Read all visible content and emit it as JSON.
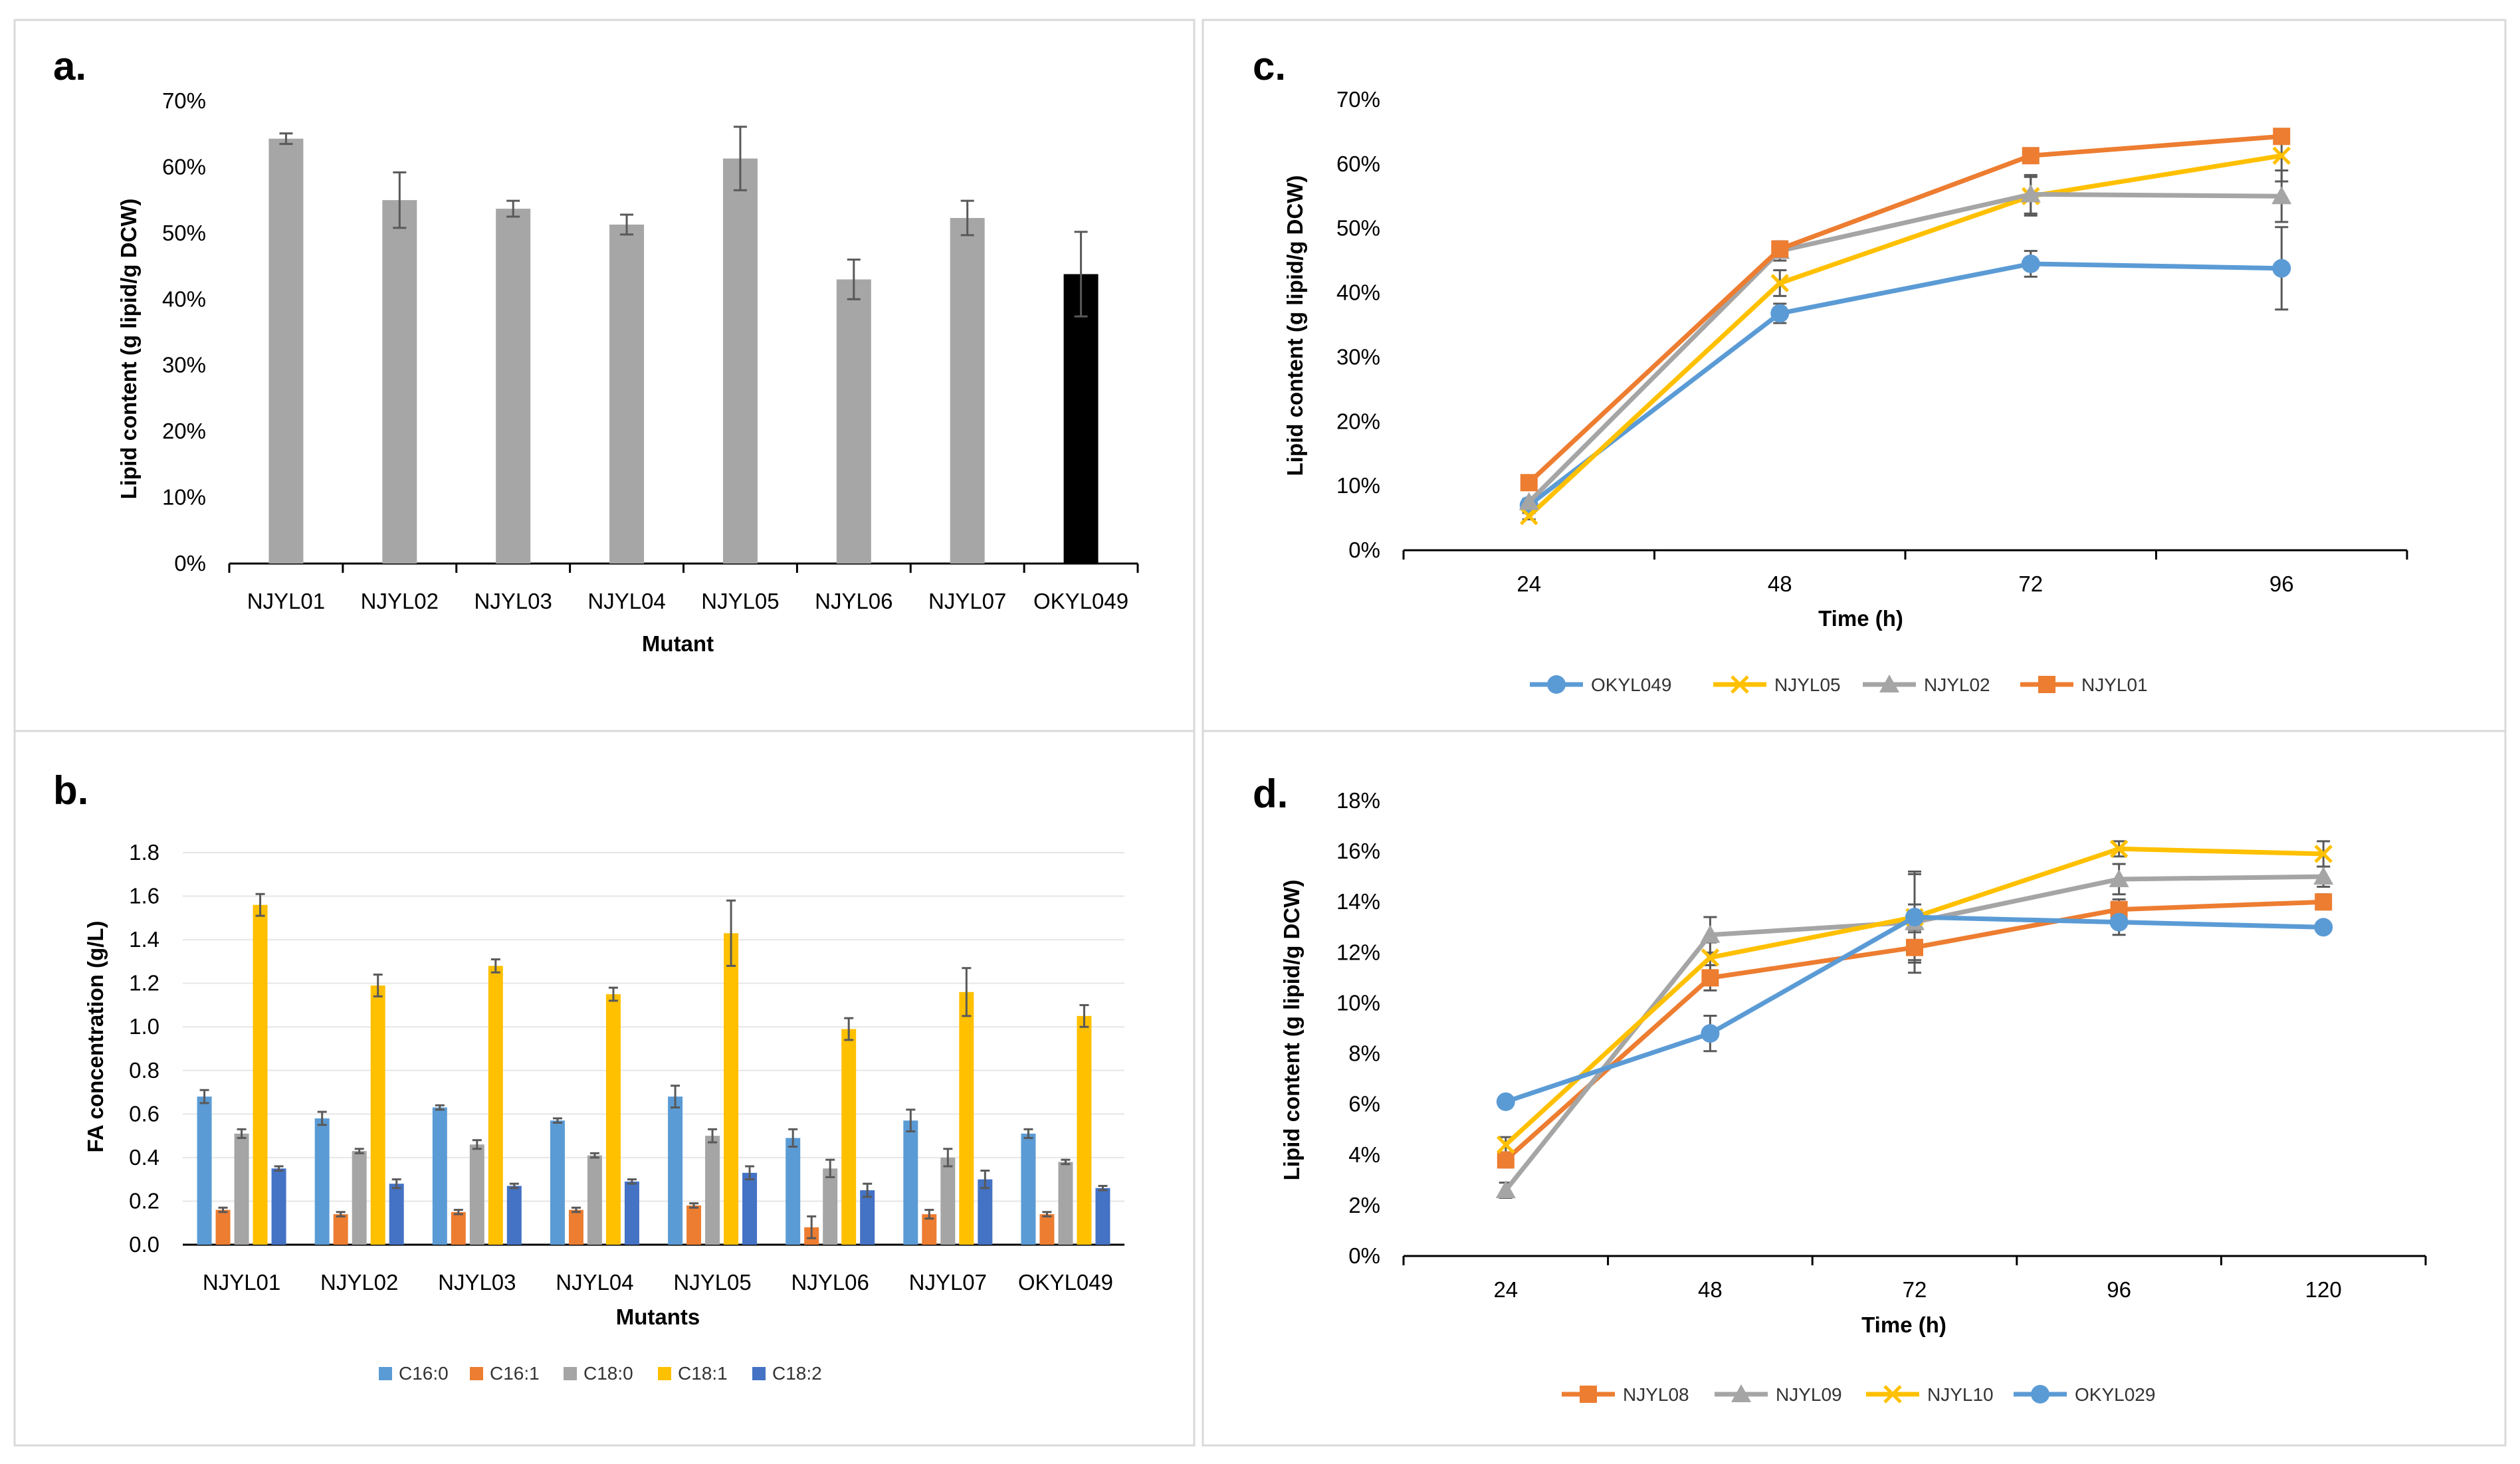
{
  "colors": {
    "gray_bar": "#a6a6a6",
    "black_bar": "#000000",
    "blue": "#5b9bd5",
    "orange": "#ed7d31",
    "gray": "#a5a5a5",
    "yellow": "#ffc000",
    "dark_blue": "#4472c4"
  },
  "chart_data": [
    {
      "panel": "a.",
      "type": "bar",
      "title": "",
      "xlabel": "Mutant",
      "ylabel": "Lipid content (g lipid/g DCW)",
      "ylim": [
        0,
        70
      ],
      "yticks": [
        "0%",
        "10%",
        "20%",
        "30%",
        "40%",
        "50%",
        "60%",
        "70%"
      ],
      "categories": [
        "NJYL01",
        "NJYL02",
        "NJYL03",
        "NJYL04",
        "NJYL05",
        "NJYL06",
        "NJYL07",
        "OKYL049"
      ],
      "values": [
        64.3,
        55.0,
        53.7,
        51.3,
        61.3,
        43.0,
        52.3,
        43.8
      ],
      "errors": [
        0.8,
        4.2,
        1.2,
        1.5,
        4.8,
        3.0,
        2.6,
        6.4
      ],
      "highlight_category": "OKYL049"
    },
    {
      "panel": "b.",
      "type": "bar",
      "title": "",
      "xlabel": "Mutants",
      "ylabel": "FA concentration (g/L)",
      "ylim": [
        0,
        1.8
      ],
      "yticks": [
        "0.0",
        "0.2",
        "0.4",
        "0.6",
        "0.8",
        "1.0",
        "1.2",
        "1.4",
        "1.6",
        "1.8"
      ],
      "categories": [
        "NJYL01",
        "NJYL02",
        "NJYL03",
        "NJYL04",
        "NJYL05",
        "NJYL06",
        "NJYL07",
        "OKYL049"
      ],
      "legend": "bottom",
      "series": [
        {
          "name": "C16:0",
          "color_key": "blue",
          "values": [
            0.68,
            0.58,
            0.63,
            0.57,
            0.68,
            0.49,
            0.57,
            0.51
          ],
          "errors": [
            0.03,
            0.03,
            0.01,
            0.01,
            0.05,
            0.04,
            0.05,
            0.02
          ]
        },
        {
          "name": "C16:1",
          "color_key": "orange",
          "values": [
            0.16,
            0.14,
            0.15,
            0.16,
            0.18,
            0.08,
            0.14,
            0.14
          ],
          "errors": [
            0.01,
            0.01,
            0.01,
            0.01,
            0.01,
            0.05,
            0.02,
            0.01
          ]
        },
        {
          "name": "C18:0",
          "color_key": "gray",
          "values": [
            0.51,
            0.43,
            0.46,
            0.41,
            0.5,
            0.35,
            0.4,
            0.38
          ],
          "errors": [
            0.02,
            0.01,
            0.02,
            0.01,
            0.03,
            0.04,
            0.04,
            0.01
          ]
        },
        {
          "name": "C18:1",
          "color_key": "yellow",
          "values": [
            1.56,
            1.19,
            1.28,
            1.15,
            1.43,
            0.99,
            1.16,
            1.05
          ],
          "errors": [
            0.05,
            0.05,
            0.03,
            0.03,
            0.15,
            0.05,
            0.11,
            0.05
          ]
        },
        {
          "name": "C18:2",
          "color_key": "dark_blue",
          "values": [
            0.35,
            0.28,
            0.27,
            0.29,
            0.33,
            0.25,
            0.3,
            0.26
          ],
          "errors": [
            0.01,
            0.02,
            0.01,
            0.01,
            0.03,
            0.03,
            0.04,
            0.01
          ]
        }
      ]
    },
    {
      "panel": "c.",
      "type": "line",
      "title": "",
      "xlabel": "Time (h)",
      "ylabel": "Lipid content (g lipid/g DCW)",
      "ylim": [
        0,
        70
      ],
      "yticks": [
        "0%",
        "10%",
        "20%",
        "30%",
        "40%",
        "50%",
        "60%",
        "70%"
      ],
      "categories": [
        "24",
        "48",
        "72",
        "96"
      ],
      "legend": "bottom",
      "series": [
        {
          "name": "OKYL049",
          "color_key": "blue",
          "marker": "circle",
          "values": [
            7.0,
            36.8,
            44.5,
            43.8
          ],
          "errors": [
            0.5,
            1.5,
            2.0,
            6.4
          ]
        },
        {
          "name": "NJYL05",
          "color_key": "yellow",
          "marker": "x",
          "values": [
            5.3,
            41.5,
            55.0,
            61.3
          ],
          "errors": [
            0.5,
            2.0,
            3.0,
            4.0
          ]
        },
        {
          "name": "NJYL02",
          "color_key": "gray",
          "marker": "triangle",
          "values": [
            7.5,
            46.5,
            55.3,
            55.0
          ],
          "errors": [
            0.5,
            1.5,
            3.0,
            4.0
          ]
        },
        {
          "name": "NJYL01",
          "color_key": "orange",
          "marker": "square",
          "values": [
            10.5,
            46.8,
            61.3,
            64.3
          ],
          "errors": [
            0.5,
            0.8,
            0.8,
            1.0
          ]
        }
      ]
    },
    {
      "panel": "d.",
      "type": "line",
      "title": "",
      "xlabel": "Time (h)",
      "ylabel": "Lipid content (g lipid/g DCW)",
      "ylim": [
        0,
        18
      ],
      "yticks": [
        "0%",
        "2%",
        "4%",
        "6%",
        "8%",
        "10%",
        "12%",
        "14%",
        "16%",
        "18%"
      ],
      "categories": [
        "24",
        "48",
        "72",
        "96",
        "120"
      ],
      "legend": "bottom",
      "series": [
        {
          "name": "NJYL08",
          "color_key": "orange",
          "marker": "square",
          "values": [
            3.8,
            11.0,
            12.2,
            13.7,
            14.0
          ],
          "errors": [
            0.3,
            0.5,
            0.6,
            0.4,
            0.3
          ]
        },
        {
          "name": "NJYL09",
          "color_key": "gray",
          "marker": "triangle",
          "values": [
            2.6,
            12.7,
            13.2,
            14.9,
            15.0
          ],
          "errors": [
            0.3,
            0.7,
            2.0,
            0.6,
            0.4
          ]
        },
        {
          "name": "NJYL10",
          "color_key": "yellow",
          "marker": "x",
          "values": [
            4.4,
            11.8,
            13.4,
            16.1,
            15.9
          ],
          "errors": [
            0.3,
            0.6,
            0.5,
            0.3,
            0.5
          ]
        },
        {
          "name": "OKYL029",
          "color_key": "blue",
          "marker": "circle",
          "values": [
            6.1,
            8.8,
            13.4,
            13.2,
            13.0
          ],
          "errors": [
            0.2,
            0.7,
            1.7,
            0.5,
            0.2
          ]
        }
      ]
    }
  ]
}
